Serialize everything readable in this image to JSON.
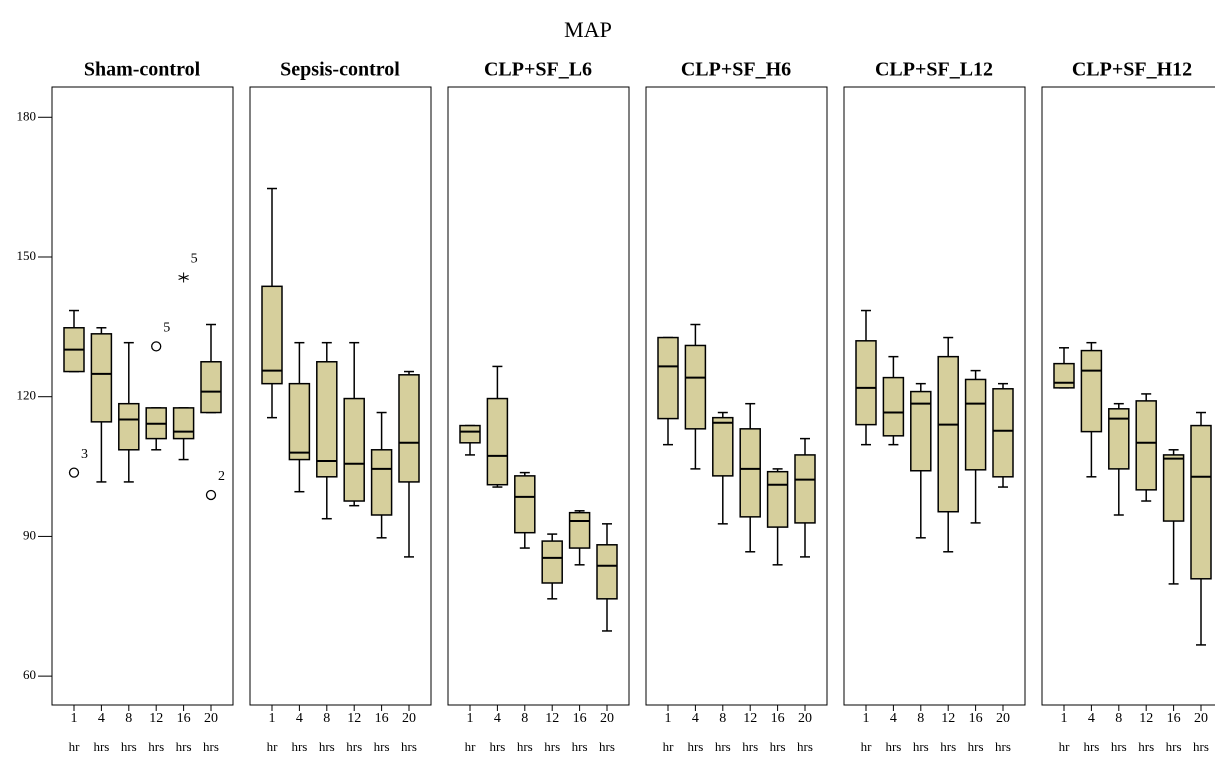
{
  "chart_data": {
    "type": "box",
    "title": "MAP",
    "title_color": "#f06060",
    "box_color": "#d6cf9c",
    "ylim": [
      53.8,
      186.5
    ],
    "yticks": [
      60,
      90,
      120,
      150,
      180
    ],
    "categories": [
      "1",
      "4",
      "8",
      "12",
      "16",
      "20"
    ],
    "category_units": [
      "hr",
      "hrs",
      "hrs",
      "hrs",
      "hrs",
      "hrs"
    ],
    "panels": [
      {
        "title": "Sham-control",
        "boxes": [
          {
            "min": 125.4,
            "q1": 125.4,
            "median": 130.1,
            "q3": 134.8,
            "max": 138.5
          },
          {
            "min": 101.7,
            "q1": 114.6,
            "median": 124.9,
            "q3": 133.5,
            "max": 134.8
          },
          {
            "min": 101.7,
            "q1": 108.6,
            "median": 115.1,
            "q3": 118.5,
            "max": 131.6
          },
          {
            "min": 108.6,
            "q1": 111.0,
            "median": 114.2,
            "q3": 117.6,
            "max": 117.6
          },
          {
            "min": 106.5,
            "q1": 111.0,
            "median": 112.5,
            "q3": 117.6,
            "max": 117.6
          },
          {
            "min": 116.6,
            "q1": 116.6,
            "median": 121.1,
            "q3": 127.5,
            "max": 135.5
          }
        ],
        "outliers": [
          {
            "category": "1",
            "value": 103.7,
            "label": "3",
            "marker": "circle"
          },
          {
            "category": "12",
            "value": 130.8,
            "label": "5",
            "marker": "circle"
          },
          {
            "category": "16",
            "value": 145.6,
            "label": "5",
            "marker": "star"
          },
          {
            "category": "20",
            "value": 98.9,
            "label": "2",
            "marker": "circle"
          }
        ]
      },
      {
        "title": "Sepsis-control",
        "boxes": [
          {
            "min": 115.5,
            "q1": 122.8,
            "median": 125.6,
            "q3": 143.7,
            "max": 164.7
          },
          {
            "min": 99.6,
            "q1": 106.5,
            "median": 108.0,
            "q3": 122.8,
            "max": 131.6
          },
          {
            "min": 93.8,
            "q1": 102.8,
            "median": 106.2,
            "q3": 127.5,
            "max": 131.6
          },
          {
            "min": 96.6,
            "q1": 97.6,
            "median": 105.6,
            "q3": 119.6,
            "max": 131.6
          },
          {
            "min": 89.7,
            "q1": 94.6,
            "median": 104.5,
            "q3": 108.6,
            "max": 116.6
          },
          {
            "min": 85.6,
            "q1": 101.7,
            "median": 110.1,
            "q3": 124.7,
            "max": 125.4
          }
        ]
      },
      {
        "title": "CLP+SF_L6",
        "boxes": [
          {
            "min": 107.5,
            "q1": 110.1,
            "median": 112.5,
            "q3": 113.8,
            "max": 113.8
          },
          {
            "min": 100.6,
            "q1": 101.1,
            "median": 107.3,
            "q3": 119.6,
            "max": 126.5
          },
          {
            "min": 87.5,
            "q1": 90.8,
            "median": 98.5,
            "q3": 103.0,
            "max": 103.7
          },
          {
            "min": 76.6,
            "q1": 80.0,
            "median": 85.4,
            "q3": 89.0,
            "max": 90.5
          },
          {
            "min": 83.9,
            "q1": 87.5,
            "median": 93.3,
            "q3": 95.1,
            "max": 95.5
          },
          {
            "min": 69.7,
            "q1": 76.6,
            "median": 83.7,
            "q3": 88.2,
            "max": 92.7
          }
        ]
      },
      {
        "title": "CLP+SF_H6",
        "boxes": [
          {
            "min": 109.7,
            "q1": 115.3,
            "median": 126.5,
            "q3": 132.7,
            "max": 132.7
          },
          {
            "min": 104.5,
            "q1": 113.1,
            "median": 124.1,
            "q3": 131.0,
            "max": 135.5
          },
          {
            "min": 92.7,
            "q1": 103.0,
            "median": 114.4,
            "q3": 115.5,
            "max": 116.6
          },
          {
            "min": 86.7,
            "q1": 94.2,
            "median": 104.5,
            "q3": 113.1,
            "max": 118.5
          },
          {
            "min": 83.9,
            "q1": 92.0,
            "median": 101.1,
            "q3": 103.9,
            "max": 104.5
          },
          {
            "min": 85.6,
            "q1": 92.9,
            "median": 102.2,
            "q3": 107.5,
            "max": 111.0
          }
        ]
      },
      {
        "title": "CLP+SF_L12",
        "boxes": [
          {
            "min": 109.7,
            "q1": 114.0,
            "median": 121.9,
            "q3": 132.0,
            "max": 138.5
          },
          {
            "min": 109.7,
            "q1": 111.6,
            "median": 116.6,
            "q3": 124.1,
            "max": 128.6
          },
          {
            "min": 89.7,
            "q1": 104.1,
            "median": 118.5,
            "q3": 121.1,
            "max": 122.8
          },
          {
            "min": 86.7,
            "q1": 95.3,
            "median": 114.0,
            "q3": 128.6,
            "max": 132.7
          },
          {
            "min": 92.9,
            "q1": 104.3,
            "median": 118.5,
            "q3": 123.7,
            "max": 125.6
          },
          {
            "min": 100.6,
            "q1": 102.8,
            "median": 112.7,
            "q3": 121.7,
            "max": 122.8
          }
        ]
      },
      {
        "title": "CLP+SF_H12",
        "boxes": [
          {
            "min": 121.9,
            "q1": 121.9,
            "median": 123.0,
            "q3": 127.1,
            "max": 130.5
          },
          {
            "min": 102.8,
            "q1": 112.5,
            "median": 125.6,
            "q3": 129.9,
            "max": 131.6
          },
          {
            "min": 94.6,
            "q1": 104.5,
            "median": 115.3,
            "q3": 117.4,
            "max": 118.5
          },
          {
            "min": 97.6,
            "q1": 100.0,
            "median": 110.1,
            "q3": 119.1,
            "max": 120.6
          },
          {
            "min": 79.8,
            "q1": 93.3,
            "median": 106.7,
            "q3": 107.5,
            "max": 108.6
          },
          {
            "min": 66.7,
            "q1": 80.9,
            "median": 102.8,
            "q3": 113.8,
            "max": 116.6
          }
        ]
      }
    ]
  }
}
